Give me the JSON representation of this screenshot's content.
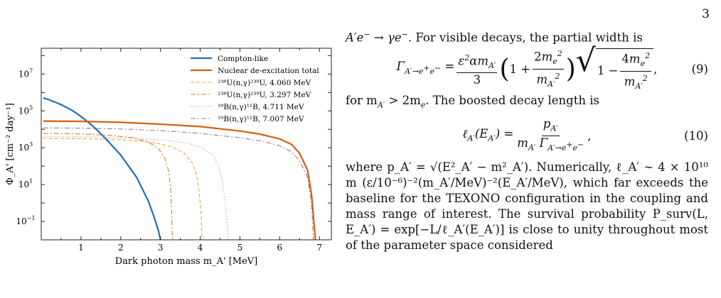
{
  "page_number": "3",
  "chart_data": {
    "type": "line",
    "xlabel": "Dark photon mass m_A' [MeV]",
    "ylabel": "Φ_A' [cm⁻² day⁻¹]",
    "xlim": [
      0,
      7.3
    ],
    "ylim_log10": [
      -2,
      8.4
    ],
    "log_y": true,
    "grid": false,
    "legend_position": "top-right",
    "x_ticks": [
      1,
      2,
      3,
      4,
      5,
      6,
      7
    ],
    "y_ticks": [
      {
        "exp": -1,
        "label": "10",
        "sup": "−1"
      },
      {
        "exp": 1,
        "label": "10",
        "sup": "1"
      },
      {
        "exp": 3,
        "label": "10",
        "sup": "3"
      },
      {
        "exp": 5,
        "label": "10",
        "sup": "5"
      },
      {
        "exp": 7,
        "label": "10",
        "sup": "7"
      }
    ],
    "series": [
      {
        "name": "Compton-like",
        "color": "#1f6fb4",
        "width": 2.2,
        "dash": "",
        "x": [
          0.05,
          0.2,
          0.5,
          0.8,
          1.0,
          1.3,
          1.6,
          2.0,
          2.4,
          2.7,
          2.85,
          2.95,
          3.0
        ],
        "y": [
          500000.0,
          400000.0,
          220000.0,
          100000.0,
          50000.0,
          15000.0,
          3500,
          400,
          25,
          1.2,
          0.15,
          0.03,
          0.01
        ]
      },
      {
        "name": "Nuclear de-excitation total",
        "color": "#d4610f",
        "width": 2.2,
        "dash": "",
        "x": [
          0.05,
          1,
          2,
          3,
          4,
          5,
          5.5,
          6,
          6.3,
          6.5,
          6.7,
          6.8,
          6.85,
          6.9
        ],
        "y": [
          28000.0,
          27000.0,
          24000.0,
          19000.0,
          14000.0,
          8000,
          5500,
          3000,
          1500,
          500,
          60,
          3,
          0.2,
          0.01
        ]
      },
      {
        "name": "²³⁸U(n,γ)²³⁹U, 4.060 MeV",
        "color": "#f0a533",
        "width": 1.1,
        "dash": "5,3",
        "x": [
          0.05,
          1,
          2,
          2.5,
          3,
          3.3,
          3.6,
          3.8,
          3.9,
          3.97,
          4.02,
          4.05
        ],
        "y": [
          3200,
          3100,
          2700,
          2300,
          1600,
          1100,
          500,
          150,
          40,
          5,
          0.3,
          0.01
        ]
      },
      {
        "name": "²³⁸U(n,γ)²³⁹U, 3.297 MeV",
        "color": "#e07a2a",
        "width": 1.1,
        "dash": "7,3,2,3",
        "x": [
          0.05,
          1,
          1.8,
          2.3,
          2.7,
          2.95,
          3.1,
          3.2,
          3.25,
          3.28,
          3.3
        ],
        "y": [
          6000,
          5600,
          4600,
          3500,
          2000,
          900,
          300,
          60,
          8,
          0.5,
          0.01
        ]
      },
      {
        "name": "¹⁰B(n,γ)¹¹B, 4.711 MeV",
        "color": "#c89a9a",
        "width": 1.1,
        "dash": "1.5,2.5",
        "x": [
          0.05,
          1,
          2,
          3,
          3.6,
          4.0,
          4.3,
          4.45,
          4.55,
          4.65,
          4.7
        ],
        "y": [
          4000,
          3900,
          3500,
          2700,
          1900,
          1100,
          450,
          120,
          20,
          0.5,
          0.01
        ]
      },
      {
        "name": "¹⁰B(n,γ)¹¹B, 7.007 MeV",
        "color": "#9a7e7e",
        "width": 1.1,
        "dash": "7,3,2,3",
        "x": [
          0.05,
          1,
          2,
          3,
          4,
          5,
          5.5,
          6,
          6.3,
          6.5,
          6.7,
          6.8,
          6.85
        ],
        "y": [
          12000.0,
          11500.0,
          10500.0,
          8500,
          6000,
          3500,
          2400,
          1300,
          600,
          200,
          25,
          1,
          0.01
        ]
      }
    ]
  },
  "text": {
    "line1_a": "A′e",
    "line1_b": " → γe",
    "line1_c": ". For visible decays, the partial width is",
    "eq9_number": "(9)",
    "after_eq9": "for m",
    "after_eq9_b": " > 2m",
    "after_eq9_c": ". The boosted decay length is",
    "eq10_number": "(10)",
    "para_last": "where p_A′ = √(E²_A′ − m²_A′). Numerically, ℓ_A′ ∼ 4 × 10¹⁰ m (ε/10⁻⁶)⁻²(m_A′/MeV)⁻²(E_A′/MeV), which far exceeds the baseline for the TEXONO configuration in the coupling and mass range of interest. The survival probability P_surv(L, E_A′) = exp[−L/ℓ_A′(E_A′)] is close to unity throughout most of the parameter space considered"
  }
}
